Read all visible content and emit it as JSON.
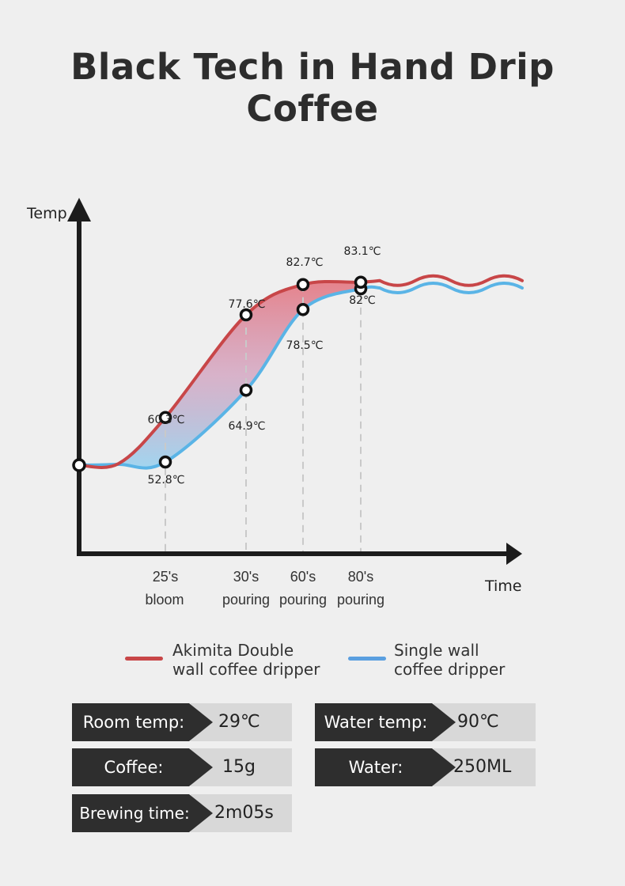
{
  "title": "Black Tech in Hand Drip Coffee",
  "chart_data": {
    "type": "line",
    "xlabel": "Time",
    "ylabel": "Temp",
    "x_ticks": [
      {
        "line1": "25's",
        "line2": "bloom"
      },
      {
        "line1": "30's",
        "line2": "pouring"
      },
      {
        "line1": "60's",
        "line2": "pouring"
      },
      {
        "line1": "80's",
        "line2": "pouring"
      }
    ],
    "series": [
      {
        "name": "Akimita Double wall coffee dripper",
        "color": "#c84648",
        "points": [
          {
            "x": "25's bloom",
            "y": 60.3,
            "label": "60.3℃"
          },
          {
            "x": "30's pouring",
            "y": 77.6,
            "label": "77.6℃"
          },
          {
            "x": "60's pouring",
            "y": 82.7,
            "label": "82.7℃"
          },
          {
            "x": "80's pouring",
            "y": 83.1,
            "label": "83.1℃"
          }
        ]
      },
      {
        "name": "Single wall coffee dripper",
        "color": "#5ab4e6",
        "points": [
          {
            "x": "25's bloom",
            "y": 52.8,
            "label": "52.8℃"
          },
          {
            "x": "30's pouring",
            "y": 64.9,
            "label": "64.9℃"
          },
          {
            "x": "60's pouring",
            "y": 78.5,
            "label": "78.5℃"
          },
          {
            "x": "80's pouring",
            "y": 82,
            "label": "82℃"
          }
        ]
      }
    ],
    "grid": false,
    "legend_position": "bottom"
  },
  "legend": {
    "double_line1": "Akimita Double",
    "double_line2": "wall coffee dripper",
    "single_line1": "Single wall",
    "single_line2": "coffee dripper",
    "double_color": "#c84648",
    "single_color": "#5a9fe0"
  },
  "specs": {
    "room_temp_label": "Room temp:",
    "room_temp_value": "29℃",
    "water_temp_label": "Water temp:",
    "water_temp_value": "90℃",
    "coffee_label": "Coffee:",
    "coffee_value": "15g",
    "water_label": "Water:",
    "water_value": "250ML",
    "brewing_label": "Brewing time:",
    "brewing_value": "2m05s"
  }
}
